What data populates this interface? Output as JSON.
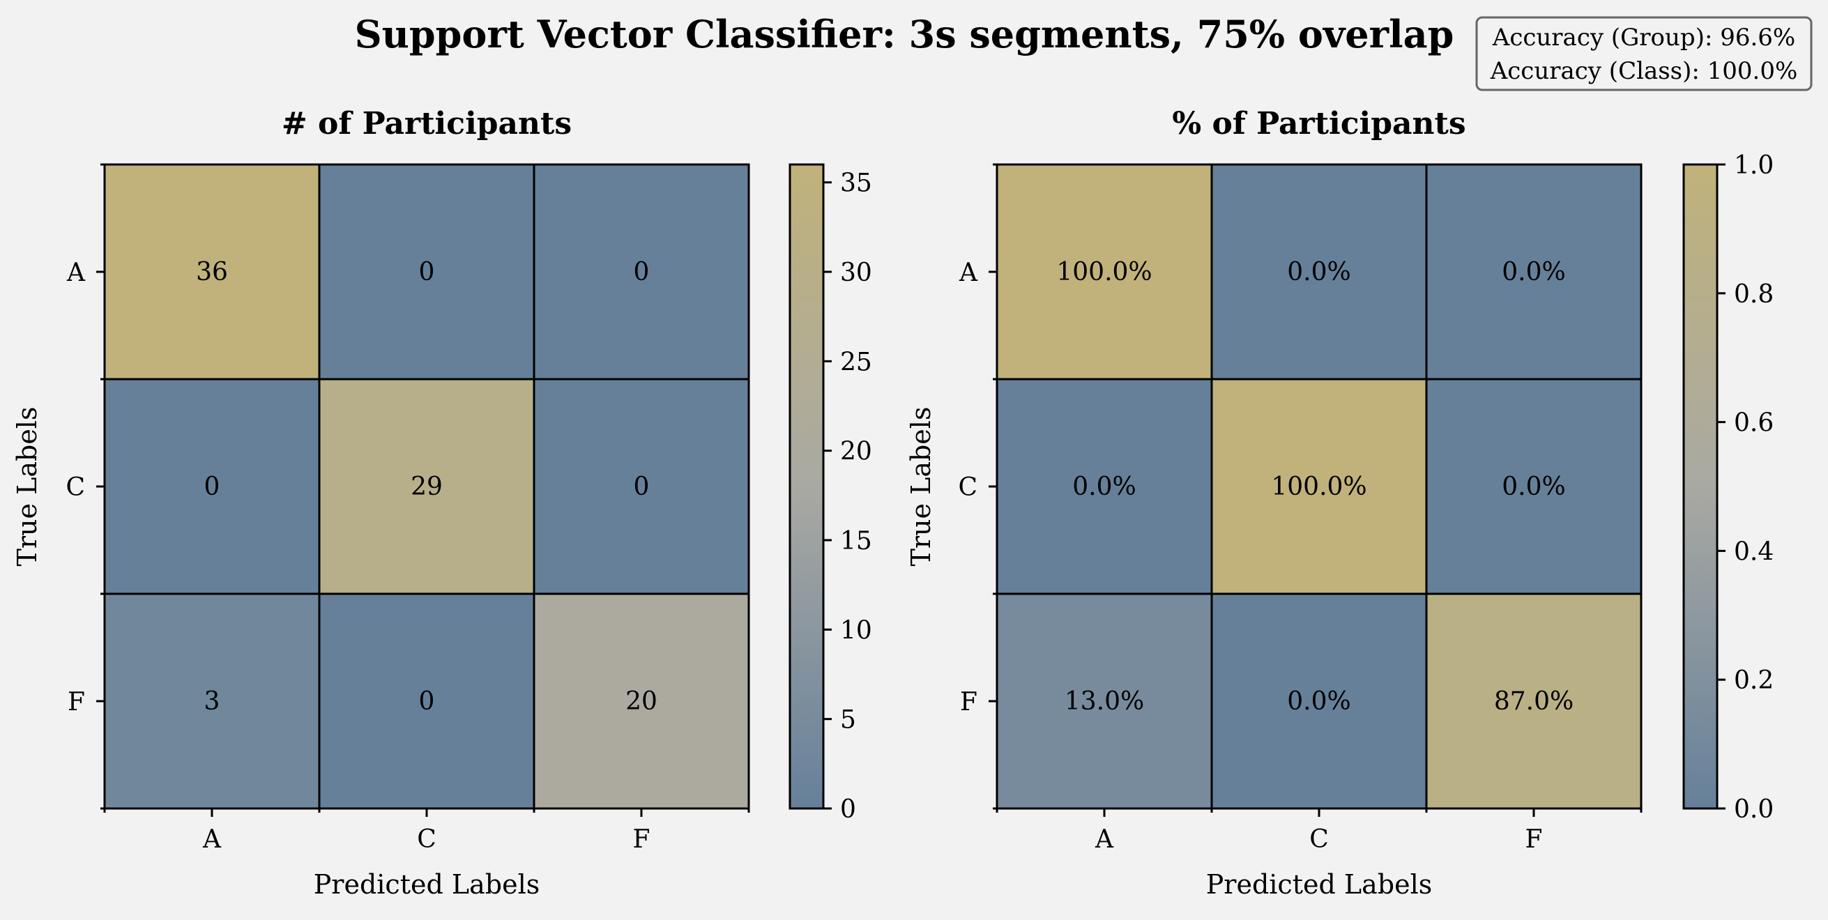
{
  "title": "Support Vector Classifier: 3s segments, 75% overlap",
  "accuracy_box": {
    "group": "Accuracy (Group): 96.6%",
    "class": "Accuracy (Class): 100.0%"
  },
  "colors": {
    "background": "#f2f2f2",
    "cmap_low": "#66809a",
    "cmap_mid": "#a9a9a3",
    "cmap_high": "#c0b27a",
    "grid": "#000000"
  },
  "chart_data": [
    {
      "type": "heatmap",
      "title": "# of Participants",
      "xlabel": "Predicted Labels",
      "ylabel": "True Labels",
      "x_categories": [
        "A",
        "C",
        "F"
      ],
      "y_categories": [
        "A",
        "C",
        "F"
      ],
      "values": [
        [
          36,
          0,
          0
        ],
        [
          0,
          29,
          0
        ],
        [
          3,
          0,
          20
        ]
      ],
      "cell_labels": [
        [
          "36",
          "0",
          "0"
        ],
        [
          "0",
          "29",
          "0"
        ],
        [
          "3",
          "0",
          "20"
        ]
      ],
      "color_range": [
        0,
        36
      ],
      "colorbar_ticks": [
        0,
        5,
        10,
        15,
        20,
        25,
        30,
        35
      ],
      "colorbar_tick_labels": [
        "0",
        "5",
        "10",
        "15",
        "20",
        "25",
        "30",
        "35"
      ]
    },
    {
      "type": "heatmap",
      "title": "% of Participants",
      "xlabel": "Predicted Labels",
      "ylabel": "True Labels",
      "x_categories": [
        "A",
        "C",
        "F"
      ],
      "y_categories": [
        "A",
        "C",
        "F"
      ],
      "values": [
        [
          1.0,
          0.0,
          0.0
        ],
        [
          0.0,
          1.0,
          0.0
        ],
        [
          0.13,
          0.0,
          0.87
        ]
      ],
      "cell_labels": [
        [
          "100.0%",
          "0.0%",
          "0.0%"
        ],
        [
          "0.0%",
          "100.0%",
          "0.0%"
        ],
        [
          "13.0%",
          "0.0%",
          "87.0%"
        ]
      ],
      "color_range": [
        0,
        1
      ],
      "colorbar_ticks": [
        0.0,
        0.2,
        0.4,
        0.6,
        0.8,
        1.0
      ],
      "colorbar_tick_labels": [
        "0.0",
        "0.2",
        "0.4",
        "0.6",
        "0.8",
        "1.0"
      ]
    }
  ]
}
